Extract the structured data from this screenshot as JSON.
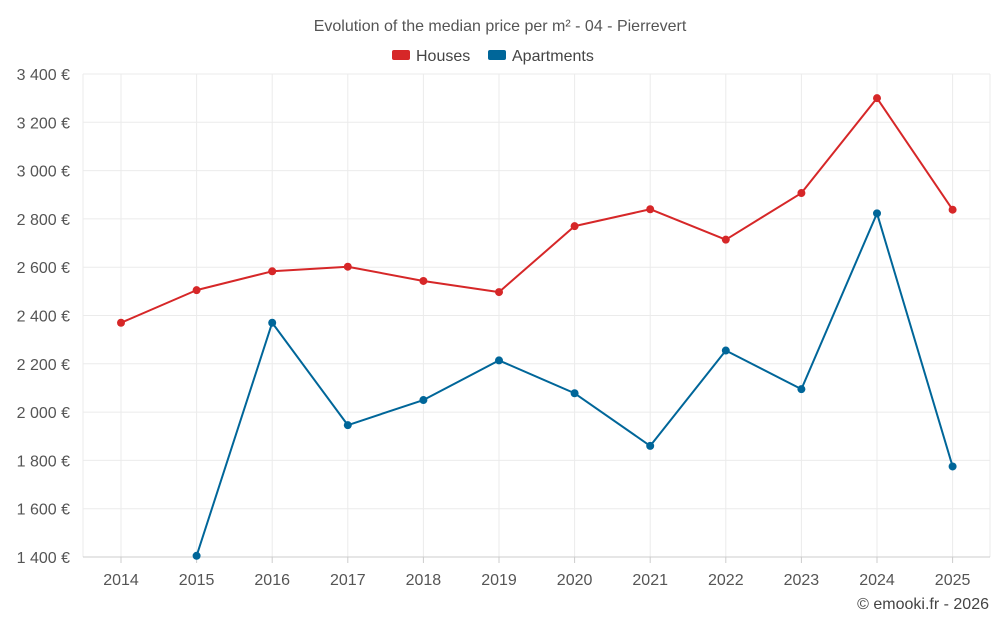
{
  "chart_data": {
    "type": "line",
    "title": "Evolution of the median price per m² - 04 - Pierrevert",
    "categories": [
      "2014",
      "2015",
      "2016",
      "2017",
      "2018",
      "2019",
      "2020",
      "2021",
      "2022",
      "2023",
      "2024",
      "2025"
    ],
    "series": [
      {
        "name": "Houses",
        "color": "#d62728",
        "values": [
          2370,
          2505,
          2583,
          2602,
          2543,
          2497,
          2770,
          2840,
          2714,
          2907,
          3300,
          2838
        ]
      },
      {
        "name": "Apartments",
        "color": "#006699",
        "values": [
          null,
          1405,
          2370,
          1946,
          2050,
          2214,
          2078,
          1860,
          2255,
          2095,
          2823,
          1775
        ]
      }
    ],
    "ylim": [
      1400,
      3400
    ],
    "yticks": [
      1400,
      1600,
      1800,
      2000,
      2200,
      2400,
      2600,
      2800,
      3000,
      3200,
      3400
    ],
    "ytick_labels": [
      "1 400 €",
      "1 600 €",
      "1 800 €",
      "2 000 €",
      "2 200 €",
      "2 400 €",
      "2 600 €",
      "2 800 €",
      "3 000 €",
      "3 200 €",
      "3 400 €"
    ],
    "xlabel": "",
    "ylabel": "",
    "grid": true,
    "legend": "top-center"
  },
  "credit": "© emooki.fr - 2026"
}
